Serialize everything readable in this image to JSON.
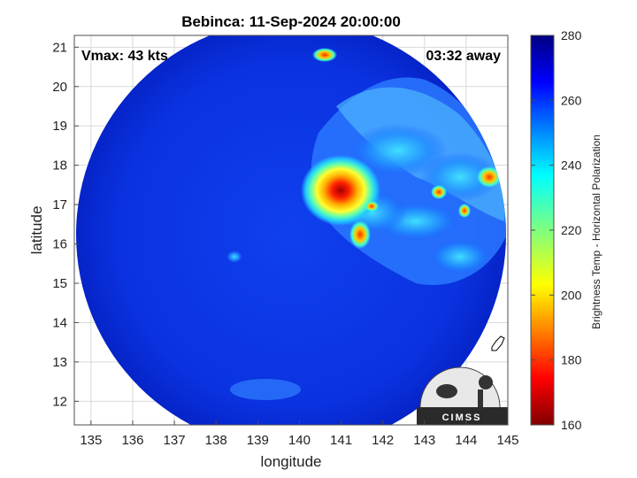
{
  "title": "Bebinca: 11-Sep-2024 20:00:00",
  "annotations": {
    "vmax": "Vmax: 43 kts",
    "time_away": "03:32 away"
  },
  "axes": {
    "xlabel": "longitude",
    "ylabel": "latitude",
    "xlim": [
      134.6,
      145
    ],
    "ylim": [
      11.4,
      21.3
    ],
    "xticks": [
      "135",
      "136",
      "137",
      "138",
      "139",
      "140",
      "141",
      "142",
      "143",
      "144",
      "145"
    ],
    "yticks": [
      "12",
      "13",
      "14",
      "15",
      "16",
      "17",
      "18",
      "19",
      "20",
      "21"
    ],
    "grid": true
  },
  "colorbar": {
    "label": "Brightness Temp - Horizontal Polarization",
    "range": [
      160,
      280
    ],
    "ticks": [
      "160",
      "180",
      "200",
      "220",
      "240",
      "260",
      "280"
    ],
    "colormap": "jet"
  },
  "swath": {
    "center_lon": 139.9,
    "center_lat": 16.4,
    "radius_deg": 5.15,
    "background_temp": 268
  },
  "features": [
    {
      "lon": 140.7,
      "lat": 17.3,
      "temp": 175
    },
    {
      "lon": 141.5,
      "lat": 16.2,
      "temp": 205
    },
    {
      "lon": 143.0,
      "lat": 17.3,
      "temp": 215
    },
    {
      "lon": 143.9,
      "lat": 18.0,
      "temp": 218
    },
    {
      "lon": 140.6,
      "lat": 20.9,
      "temp": 225
    }
  ],
  "logo": {
    "text": "CIMSS"
  },
  "colors": {
    "swath_blue": "#0a2ad8",
    "frame": "#7f7f7f"
  }
}
